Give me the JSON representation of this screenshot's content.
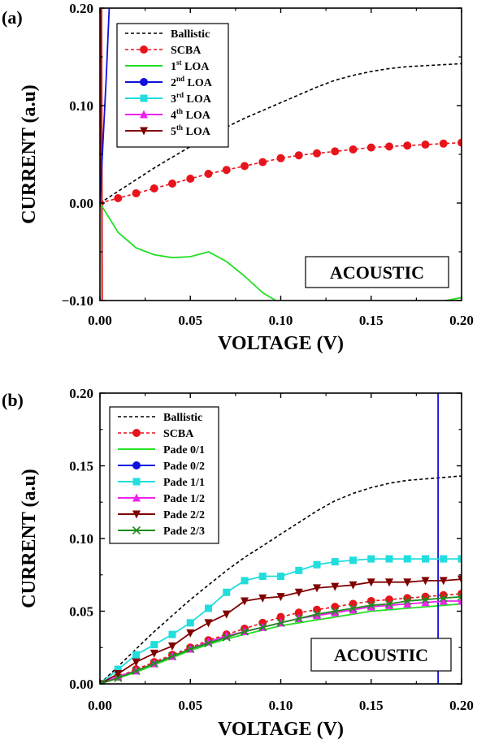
{
  "chart_data": [
    {
      "panel": "(a)",
      "type": "line",
      "xlabel": "VOLTAGE (V)",
      "ylabel": "CURRENT (a.u)",
      "xlim": [
        0,
        0.2
      ],
      "ylim": [
        -0.1,
        0.2
      ],
      "xticks": [
        "0.00",
        "0.05",
        "0.10",
        "0.15",
        "0.20"
      ],
      "yticks": [
        "−0.10",
        "0.00",
        "0.10",
        "0.20"
      ],
      "xtick_values": [
        0,
        0.05,
        0.1,
        0.15,
        0.2
      ],
      "ytick_values": [
        -0.1,
        0,
        0.1,
        0.2
      ],
      "annotation": "ACOUSTIC",
      "legend_position": "top-left",
      "grid": false,
      "series": [
        {
          "name": "Ballistic",
          "color": "#000000",
          "dash": "4,3",
          "marker": "none",
          "x": [
            0,
            0.01,
            0.02,
            0.03,
            0.04,
            0.05,
            0.06,
            0.07,
            0.08,
            0.09,
            0.1,
            0.11,
            0.12,
            0.13,
            0.14,
            0.15,
            0.16,
            0.17,
            0.18,
            0.19,
            0.2
          ],
          "y": [
            0,
            0.012,
            0.024,
            0.036,
            0.047,
            0.058,
            0.068,
            0.078,
            0.087,
            0.095,
            0.103,
            0.111,
            0.119,
            0.126,
            0.131,
            0.135,
            0.138,
            0.14,
            0.141,
            0.142,
            0.143
          ]
        },
        {
          "name": "SCBA",
          "color": "#e8141c",
          "dash": "4,3",
          "marker": "circle",
          "x": [
            0,
            0.01,
            0.02,
            0.03,
            0.04,
            0.05,
            0.06,
            0.07,
            0.08,
            0.09,
            0.1,
            0.11,
            0.12,
            0.13,
            0.14,
            0.15,
            0.16,
            0.17,
            0.18,
            0.19,
            0.2
          ],
          "y": [
            0,
            0.005,
            0.01,
            0.015,
            0.02,
            0.025,
            0.03,
            0.034,
            0.038,
            0.042,
            0.046,
            0.049,
            0.051,
            0.053,
            0.055,
            0.057,
            0.058,
            0.059,
            0.06,
            0.061,
            0.062
          ]
        },
        {
          "name": "1st LOA",
          "name_base": "1",
          "name_sup": "st",
          "name_rest": " LOA",
          "color": "#22e022",
          "dash": "",
          "marker": "none",
          "x": [
            0,
            0.01,
            0.02,
            0.03,
            0.04,
            0.05,
            0.06,
            0.07,
            0.08,
            0.09,
            0.1,
            0.12,
            0.15,
            0.18,
            0.2
          ],
          "y": [
            0,
            -0.03,
            -0.046,
            -0.053,
            -0.056,
            -0.055,
            -0.05,
            -0.06,
            -0.075,
            -0.092,
            -0.103,
            -0.118,
            -0.113,
            -0.104,
            -0.097
          ]
        },
        {
          "name": "2nd LOA",
          "name_base": "2",
          "name_sup": "nd",
          "name_rest": " LOA",
          "color": "#1010e0",
          "dash": "",
          "marker": "circle",
          "x": [
            0,
            0.0035,
            0.0065
          ],
          "y": [
            0,
            0.13,
            0.26
          ]
        },
        {
          "name": "3rd LOA",
          "name_base": "3",
          "name_sup": "rd",
          "name_rest": " LOA",
          "color": "#22dddd",
          "dash": "",
          "marker": "square",
          "x": [],
          "y": []
        },
        {
          "name": "4th LOA",
          "name_base": "4",
          "name_sup": "th",
          "name_rest": " LOA",
          "color": "#ee22ee",
          "dash": "",
          "marker": "triangle",
          "x": [],
          "y": []
        },
        {
          "name": "5th LOA",
          "name_base": "5",
          "name_sup": "th",
          "name_rest": " LOA",
          "color": "#800000",
          "dash": "",
          "marker": "triangle-down",
          "x": [],
          "y": []
        }
      ],
      "extra_lines": [
        {
          "color": "#e01010",
          "x": [
            0,
            0.0008,
            0.0012
          ],
          "y": [
            0,
            0.25,
            -0.12
          ]
        }
      ]
    },
    {
      "panel": "(b)",
      "type": "line",
      "xlabel": "VOLTAGE (V)",
      "ylabel": "CURRENT (a.u)",
      "xlim": [
        0,
        0.2
      ],
      "ylim": [
        0,
        0.2
      ],
      "xticks": [
        "0.00",
        "0.05",
        "0.10",
        "0.15",
        "0.20"
      ],
      "yticks": [
        "0.00",
        "0.05",
        "0.10",
        "0.15",
        "0.20"
      ],
      "xtick_values": [
        0,
        0.05,
        0.1,
        0.15,
        0.2
      ],
      "ytick_values": [
        0,
        0.05,
        0.1,
        0.15,
        0.2
      ],
      "annotation": "ACOUSTIC",
      "legend_position": "top-left",
      "grid": false,
      "series": [
        {
          "name": "Ballistic",
          "color": "#000000",
          "dash": "4,3",
          "marker": "none",
          "x": [
            0,
            0.01,
            0.02,
            0.03,
            0.04,
            0.05,
            0.06,
            0.07,
            0.08,
            0.09,
            0.1,
            0.11,
            0.12,
            0.13,
            0.14,
            0.15,
            0.16,
            0.17,
            0.18,
            0.19,
            0.2
          ],
          "y": [
            0,
            0.012,
            0.024,
            0.036,
            0.047,
            0.058,
            0.068,
            0.078,
            0.087,
            0.095,
            0.103,
            0.111,
            0.119,
            0.126,
            0.131,
            0.135,
            0.138,
            0.14,
            0.141,
            0.142,
            0.143
          ]
        },
        {
          "name": "SCBA",
          "color": "#e8141c",
          "dash": "4,3",
          "marker": "circle",
          "x": [
            0,
            0.01,
            0.02,
            0.03,
            0.04,
            0.05,
            0.06,
            0.07,
            0.08,
            0.09,
            0.1,
            0.11,
            0.12,
            0.13,
            0.14,
            0.15,
            0.16,
            0.17,
            0.18,
            0.19,
            0.2
          ],
          "y": [
            0,
            0.005,
            0.01,
            0.015,
            0.02,
            0.025,
            0.03,
            0.034,
            0.038,
            0.042,
            0.046,
            0.049,
            0.051,
            0.053,
            0.055,
            0.057,
            0.058,
            0.059,
            0.06,
            0.061,
            0.062
          ]
        },
        {
          "name": "Pade 0/1",
          "color": "#22e022",
          "dash": "",
          "marker": "none",
          "x": [
            0,
            0.01,
            0.02,
            0.03,
            0.04,
            0.05,
            0.06,
            0.07,
            0.08,
            0.09,
            0.1,
            0.11,
            0.12,
            0.13,
            0.14,
            0.15,
            0.16,
            0.17,
            0.18,
            0.19,
            0.2
          ],
          "y": [
            0,
            0.004,
            0.008,
            0.013,
            0.018,
            0.023,
            0.027,
            0.031,
            0.034,
            0.037,
            0.04,
            0.042,
            0.044,
            0.046,
            0.048,
            0.05,
            0.051,
            0.052,
            0.053,
            0.054,
            0.055
          ]
        },
        {
          "name": "Pade 0/2",
          "color": "#1010e0",
          "dash": "",
          "marker": "circle",
          "x": [
            0.187,
            0.187
          ],
          "y": [
            0,
            0.2
          ]
        },
        {
          "name": "Pade 1/1",
          "color": "#22dddd",
          "dash": "",
          "marker": "square",
          "x": [
            0,
            0.01,
            0.02,
            0.03,
            0.04,
            0.05,
            0.06,
            0.07,
            0.08,
            0.09,
            0.1,
            0.11,
            0.12,
            0.13,
            0.14,
            0.15,
            0.16,
            0.17,
            0.18,
            0.19,
            0.2
          ],
          "y": [
            0,
            0.01,
            0.02,
            0.027,
            0.034,
            0.042,
            0.052,
            0.063,
            0.071,
            0.074,
            0.074,
            0.078,
            0.082,
            0.084,
            0.085,
            0.086,
            0.086,
            0.086,
            0.086,
            0.086,
            0.086
          ]
        },
        {
          "name": "Pade 1/2",
          "color": "#ee22ee",
          "dash": "",
          "marker": "triangle",
          "x": [
            0,
            0.01,
            0.02,
            0.03,
            0.04,
            0.05,
            0.06,
            0.07,
            0.08,
            0.09,
            0.1,
            0.11,
            0.12,
            0.13,
            0.14,
            0.15,
            0.16,
            0.17,
            0.18,
            0.19,
            0.2
          ],
          "y": [
            0,
            0.005,
            0.009,
            0.014,
            0.019,
            0.024,
            0.029,
            0.033,
            0.036,
            0.039,
            0.042,
            0.045,
            0.047,
            0.049,
            0.051,
            0.053,
            0.054,
            0.055,
            0.056,
            0.057,
            0.057
          ]
        },
        {
          "name": "Pade 2/2",
          "color": "#800000",
          "dash": "",
          "marker": "triangle-down",
          "x": [
            0,
            0.01,
            0.02,
            0.03,
            0.04,
            0.05,
            0.06,
            0.07,
            0.08,
            0.09,
            0.1,
            0.11,
            0.12,
            0.13,
            0.14,
            0.15,
            0.16,
            0.17,
            0.18,
            0.19,
            0.2
          ],
          "y": [
            0,
            0.007,
            0.015,
            0.021,
            0.026,
            0.035,
            0.042,
            0.048,
            0.057,
            0.059,
            0.06,
            0.063,
            0.066,
            0.067,
            0.068,
            0.07,
            0.07,
            0.07,
            0.071,
            0.071,
            0.072
          ]
        },
        {
          "name": "Pade 2/3",
          "color": "#1e8c1e",
          "dash": "",
          "marker": "x",
          "x": [
            0,
            0.01,
            0.02,
            0.03,
            0.04,
            0.05,
            0.06,
            0.07,
            0.08,
            0.09,
            0.1,
            0.11,
            0.12,
            0.13,
            0.14,
            0.15,
            0.16,
            0.17,
            0.18,
            0.19,
            0.2
          ],
          "y": [
            0,
            0.004,
            0.009,
            0.014,
            0.019,
            0.024,
            0.028,
            0.032,
            0.036,
            0.039,
            0.042,
            0.045,
            0.048,
            0.05,
            0.052,
            0.054,
            0.055,
            0.057,
            0.058,
            0.059,
            0.06
          ]
        }
      ]
    }
  ]
}
